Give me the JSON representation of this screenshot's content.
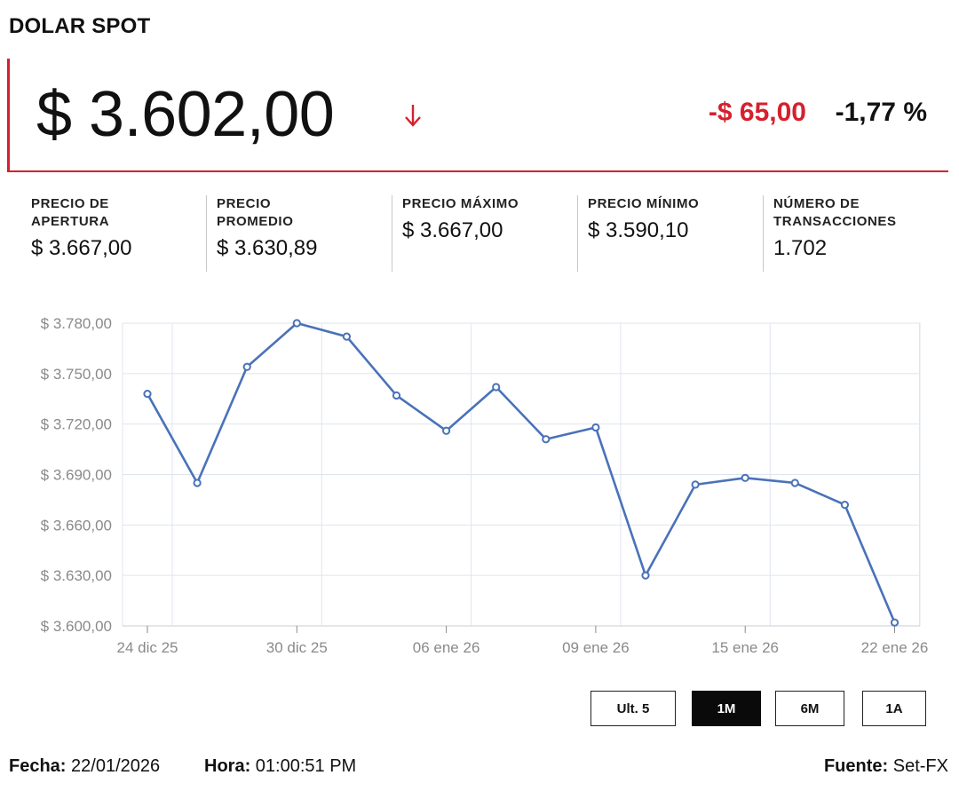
{
  "header": {
    "title": "DOLAR SPOT"
  },
  "price": {
    "current": "$ 3.602,00",
    "change_abs": "-$ 65,00",
    "change_pct": "-1,77 %",
    "direction": "down",
    "down_color": "#d6202e"
  },
  "stats": [
    {
      "label_line1": "PRECIO DE",
      "label_line2": "APERTURA",
      "value": "$ 3.667,00"
    },
    {
      "label_line1": "PRECIO",
      "label_line2": "PROMEDIO",
      "value": "$ 3.630,89"
    },
    {
      "label_line1": "PRECIO MÁXIMO",
      "label_line2": "",
      "value": "$ 3.667,00"
    },
    {
      "label_line1": "PRECIO MÍNIMO",
      "label_line2": "",
      "value": "$ 3.590,10"
    },
    {
      "label_line1": "NÚMERO DE",
      "label_line2": "TRANSACCIONES",
      "value": "1.702"
    }
  ],
  "chart_data": {
    "type": "line",
    "title": "",
    "xlabel": "",
    "ylabel": "",
    "ylim": [
      3600,
      3780
    ],
    "yticks": [
      3600,
      3630,
      3660,
      3690,
      3720,
      3750,
      3780
    ],
    "ytick_labels": [
      "$ 3.600,00",
      "$ 3.630,00",
      "$ 3.660,00",
      "$ 3.690,00",
      "$ 3.720,00",
      "$ 3.750,00",
      "$ 3.780,00"
    ],
    "x_tick_labels": [
      "24 dic 25",
      "30 dic 25",
      "06 ene 26",
      "09 ene 26",
      "15 ene 26",
      "22 ene 26"
    ],
    "x_tick_point_index": [
      0,
      3,
      6,
      9,
      12,
      15
    ],
    "series": [
      {
        "color": "#4a72b8",
        "values": [
          3738,
          3685,
          3754,
          3780,
          3772,
          3737,
          3716,
          3742,
          3711,
          3718,
          3630,
          3684,
          3688,
          3685,
          3672,
          3602
        ]
      }
    ],
    "grid": true
  },
  "ranges": {
    "options": [
      "Ult. 5",
      "1M",
      "6M",
      "1A"
    ],
    "selected": "1M"
  },
  "footer": {
    "fecha_label": "Fecha:",
    "fecha_value": "22/01/2026",
    "hora_label": "Hora:",
    "hora_value": "01:00:51 PM",
    "fuente_label": "Fuente:",
    "fuente_value": "Set-FX"
  }
}
